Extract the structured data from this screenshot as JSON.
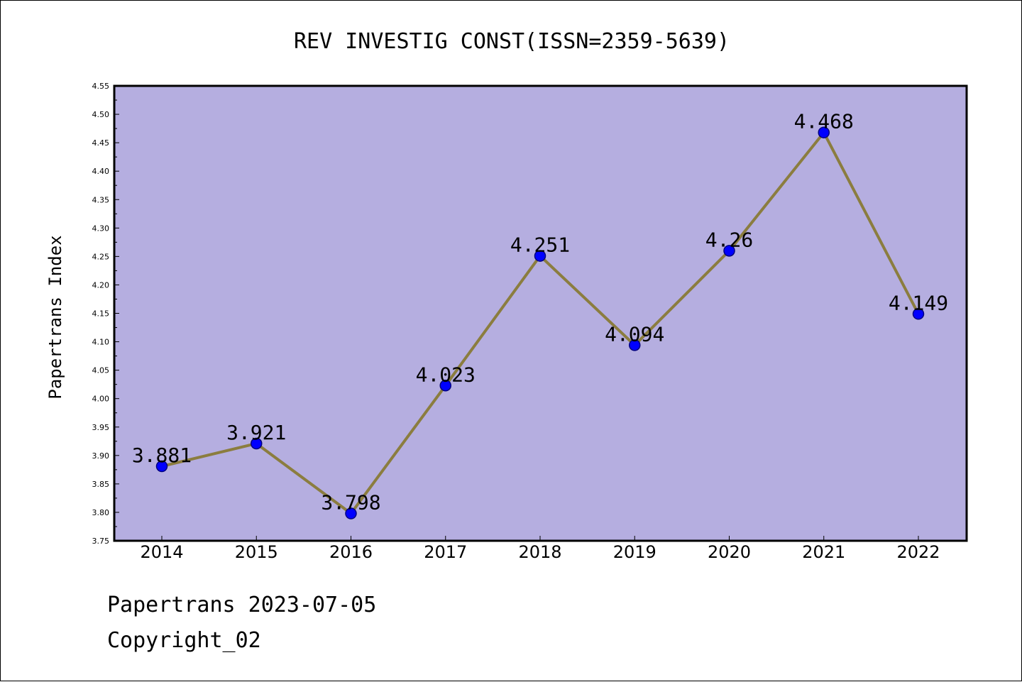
{
  "chart_data": {
    "type": "line",
    "title": "REV INVESTIG CONST(ISSN=2359-5639)",
    "xlabel": "",
    "ylabel": "Papertrans Index",
    "categories": [
      "2014",
      "2015",
      "2016",
      "2017",
      "2018",
      "2019",
      "2020",
      "2021",
      "2022"
    ],
    "values": [
      3.881,
      3.921,
      3.798,
      4.023,
      4.251,
      4.094,
      4.26,
      4.468,
      4.149
    ],
    "value_labels": [
      "3.881",
      "3.921",
      "3.798",
      "4.023",
      "4.251",
      "4.094",
      "4.26",
      "4.468",
      "4.149"
    ],
    "ylim": [
      3.75,
      4.55
    ],
    "yticks": [
      "3.75",
      "3.80",
      "3.85",
      "3.90",
      "3.95",
      "4.00",
      "4.05",
      "4.10",
      "4.15",
      "4.20",
      "4.25",
      "4.30",
      "4.35",
      "4.40",
      "4.45",
      "4.50",
      "4.55"
    ],
    "grid": false,
    "colors": {
      "plot_background": "#b5aee0",
      "line": "#8b7d3f",
      "marker": "#0000ff",
      "marker_edge": "#000080"
    }
  },
  "footer": {
    "line1": "Papertrans 2023-07-05",
    "line2": "Copyright_02"
  }
}
